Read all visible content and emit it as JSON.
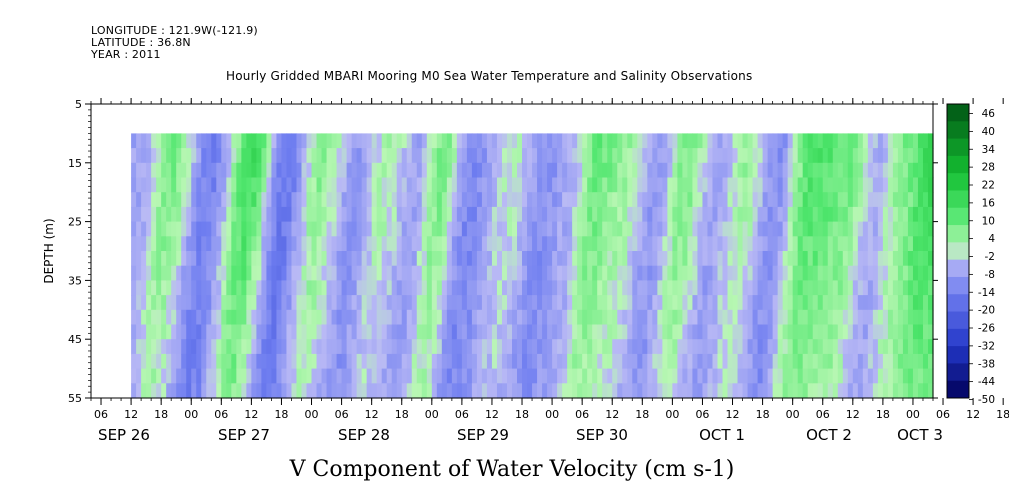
{
  "header": {
    "longitude": "LONGITUDE : 121.9W(-121.9)",
    "latitude": "LATITUDE : 36.8N",
    "year": "YEAR : 2011"
  },
  "chart_data": {
    "type": "heatmap",
    "title": "Hourly Gridded MBARI Mooring M0 Sea Water Temperature and Salinity Observations",
    "xlabel": "V Component of Water Velocity (cm s-1)",
    "ylabel": "DEPTH (m)",
    "ylim": [
      55,
      5
    ],
    "yticks": [
      5,
      15,
      25,
      35,
      45,
      55
    ],
    "x_range_hours": [
      "2011-09-26T04:00",
      "2011-10-03T04:00"
    ],
    "data_start": "2011-09-26T12:00",
    "data_end": "2011-10-03T04:00",
    "depth_range": [
      10,
      55
    ],
    "xtick_hour_labels": [
      "06",
      "12",
      "18",
      "00",
      "06",
      "12",
      "18",
      "00",
      "06",
      "12",
      "18",
      "00",
      "06",
      "12",
      "18",
      "00",
      "06",
      "12",
      "18",
      "00",
      "06",
      "12",
      "18",
      "00",
      "06",
      "12",
      "18",
      "00",
      "06",
      "12",
      "18",
      "00"
    ],
    "date_labels": [
      "SEP 26",
      "SEP 27",
      "SEP 28",
      "SEP 29",
      "SEP 30",
      "OCT  1",
      "OCT  2",
      "OCT  3"
    ],
    "colorbar_labels": [
      "46",
      "40",
      "34",
      "28",
      "22",
      "16",
      "10",
      "4",
      "-2",
      "-8",
      "-14",
      "-20",
      "-26",
      "-32",
      "-38",
      "-44",
      "-50"
    ],
    "colorbar_range": [
      -50,
      52
    ],
    "colors": {
      "strong_positive": "#006400",
      "positive": "#39e34a",
      "weak_positive": "#b6f7b3",
      "weak_negative": "#b7b8f3",
      "negative": "#6f7ef0",
      "strong_negative": "#00007a"
    },
    "bands": [
      {
        "start": "2011-09-26T12:00",
        "end": "2011-09-26T16:00",
        "value": -6
      },
      {
        "start": "2011-09-26T16:00",
        "end": "2011-09-27T00:00",
        "value": 10
      },
      {
        "start": "2011-09-27T00:00",
        "end": "2011-09-27T08:00",
        "value": -14
      },
      {
        "start": "2011-09-27T08:00",
        "end": "2011-09-27T16:00",
        "value": 18
      },
      {
        "start": "2011-09-27T16:00",
        "end": "2011-09-27T22:00",
        "value": -16
      },
      {
        "start": "2011-09-27T22:00",
        "end": "2011-09-28T06:00",
        "value": 8
      },
      {
        "start": "2011-09-28T06:00",
        "end": "2011-09-28T12:00",
        "value": -8
      },
      {
        "start": "2011-09-28T12:00",
        "end": "2011-09-28T18:00",
        "value": 4
      },
      {
        "start": "2011-09-28T18:00",
        "end": "2011-09-29T00:00",
        "value": -6
      },
      {
        "start": "2011-09-29T00:00",
        "end": "2011-09-29T04:00",
        "value": 10
      },
      {
        "start": "2011-09-29T04:00",
        "end": "2011-09-29T12:00",
        "value": -12
      },
      {
        "start": "2011-09-29T12:00",
        "end": "2011-09-29T20:00",
        "value": 2
      },
      {
        "start": "2011-09-29T20:00",
        "end": "2011-09-30T02:00",
        "value": -10
      },
      {
        "start": "2011-09-30T02:00",
        "end": "2011-09-30T06:00",
        "value": -4
      },
      {
        "start": "2011-09-30T06:00",
        "end": "2011-09-30T12:00",
        "value": 12
      },
      {
        "start": "2011-09-30T12:00",
        "end": "2011-09-30T18:00",
        "value": 6
      },
      {
        "start": "2011-09-30T18:00",
        "end": "2011-10-01T00:00",
        "value": -8
      },
      {
        "start": "2011-10-01T00:00",
        "end": "2011-10-01T06:00",
        "value": 10
      },
      {
        "start": "2011-10-01T06:00",
        "end": "2011-10-01T12:00",
        "value": -6
      },
      {
        "start": "2011-10-01T12:00",
        "end": "2011-10-01T18:00",
        "value": 6
      },
      {
        "start": "2011-10-01T18:00",
        "end": "2011-10-02T00:00",
        "value": -10
      },
      {
        "start": "2011-10-02T00:00",
        "end": "2011-10-02T08:00",
        "value": 16
      },
      {
        "start": "2011-10-02T08:00",
        "end": "2011-10-02T14:00",
        "value": 12
      },
      {
        "start": "2011-10-02T14:00",
        "end": "2011-10-02T20:00",
        "value": -4
      },
      {
        "start": "2011-10-02T20:00",
        "end": "2011-10-03T02:00",
        "value": 10
      },
      {
        "start": "2011-10-03T02:00",
        "end": "2011-10-03T04:00",
        "value": 20
      }
    ]
  }
}
